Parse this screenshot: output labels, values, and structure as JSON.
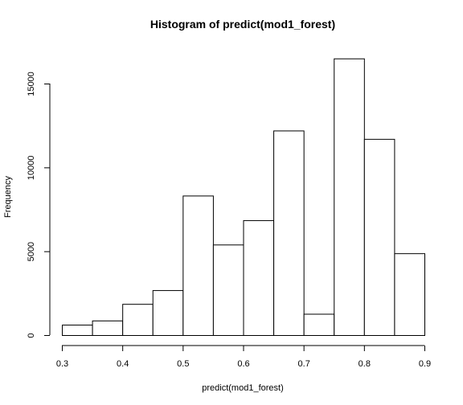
{
  "chart_data": {
    "type": "bar",
    "title": "Histogram of predict(mod1_forest)",
    "xlabel": "predict(mod1_forest)",
    "ylabel": "Frequency",
    "bin_edges": [
      0.3,
      0.35,
      0.4,
      0.45,
      0.5,
      0.55,
      0.6,
      0.65,
      0.7,
      0.75,
      0.8,
      0.85,
      0.9
    ],
    "values": [
      620,
      870,
      1860,
      2680,
      8320,
      5400,
      6850,
      12200,
      1270,
      16500,
      11700,
      4880
    ],
    "xlim": [
      0.3,
      0.9
    ],
    "ylim": [
      0,
      15000
    ],
    "x_ticks": [
      "0.3",
      "0.4",
      "0.5",
      "0.6",
      "0.7",
      "0.8",
      "0.9"
    ],
    "y_ticks": [
      "0",
      "5000",
      "10000",
      "15000"
    ],
    "bar_fill": "#ffffff",
    "bar_stroke": "#000000",
    "grid": false,
    "legend": "none"
  }
}
